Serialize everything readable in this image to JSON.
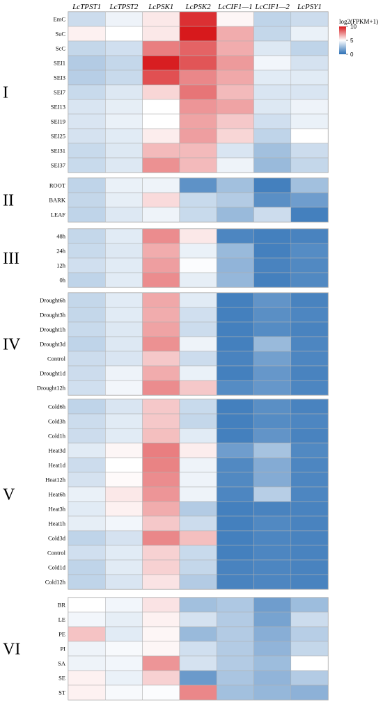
{
  "chart_data": {
    "type": "heatmap",
    "columns": [
      "LcTPST1",
      "LcTPST2",
      "LcPSK1",
      "LcPSK2",
      "LcCIF1—1",
      "LcCIF1—2",
      "LcPSY1"
    ],
    "colorbar": {
      "title": "log2(FPKM+1)",
      "min": 0,
      "max": 10,
      "ticks": [
        10,
        5,
        0
      ],
      "low_color": "#2b6fb5",
      "mid_color": "#ffffff",
      "high_color": "#d7191c"
    },
    "groups": [
      {
        "label": "I",
        "rows": [
          "EmC",
          "SuC",
          "ScC",
          "SEI1",
          "SEI3",
          "SEI7",
          "SEI13",
          "SEI19",
          "SEI25",
          "SEI31",
          "SEI37"
        ],
        "values": [
          [
            3.8,
            4.6,
            5.5,
            9.5,
            5.2,
            3.5,
            3.8
          ],
          [
            5.3,
            5.0,
            5.5,
            10.0,
            6.8,
            3.6,
            4.5
          ],
          [
            3.6,
            3.9,
            7.8,
            8.4,
            6.8,
            4.2,
            3.5
          ],
          [
            3.2,
            3.6,
            9.9,
            8.7,
            7.2,
            4.7,
            4.0
          ],
          [
            3.3,
            3.7,
            8.8,
            7.6,
            6.9,
            4.3,
            4.3
          ],
          [
            3.7,
            4.2,
            5.9,
            8.0,
            6.5,
            4.1,
            4.1
          ],
          [
            4.1,
            4.4,
            5.0,
            7.3,
            7.0,
            4.2,
            4.6
          ],
          [
            4.1,
            4.5,
            5.0,
            7.0,
            6.2,
            3.9,
            4.5
          ],
          [
            4.0,
            4.3,
            5.4,
            7.1,
            5.9,
            3.5,
            5.0
          ],
          [
            3.7,
            4.2,
            6.5,
            6.5,
            4.1,
            2.8,
            3.8
          ],
          [
            3.7,
            4.2,
            7.4,
            6.5,
            4.6,
            2.6,
            3.6
          ]
        ]
      },
      {
        "label": "II",
        "rows": [
          "ROOT",
          "BARK",
          "LEAF"
        ],
        "values": [
          [
            3.5,
            4.5,
            4.6,
            1.2,
            2.8,
            0.6,
            2.8
          ],
          [
            3.6,
            4.4,
            5.8,
            3.7,
            3.2,
            1.1,
            1.6
          ],
          [
            3.5,
            4.2,
            4.6,
            3.7,
            2.6,
            3.8,
            0.6
          ]
        ]
      },
      {
        "label": "III",
        "rows": [
          "48h",
          "24h",
          "12h",
          "0h"
        ],
        "values": [
          [
            3.6,
            4.3,
            7.5,
            5.5,
            0.8,
            0.6,
            0.7
          ],
          [
            3.7,
            4.2,
            6.8,
            4.5,
            2.6,
            0.6,
            1.0
          ],
          [
            3.9,
            4.3,
            7.1,
            4.9,
            2.4,
            0.7,
            0.9
          ],
          [
            3.5,
            4.3,
            7.5,
            4.4,
            2.5,
            0.6,
            0.9
          ]
        ]
      },
      {
        "label": "IV",
        "rows": [
          "Drought6h",
          "Drought3h",
          "Drought1h",
          "Drought3d",
          "Control",
          "Drought1d",
          "Drought12h"
        ],
        "values": [
          [
            3.6,
            4.3,
            6.9,
            4.3,
            0.6,
            1.3,
            0.7
          ],
          [
            3.6,
            4.3,
            6.8,
            3.9,
            0.6,
            1.1,
            0.8
          ],
          [
            3.7,
            4.2,
            7.0,
            3.8,
            0.6,
            1.0,
            0.7
          ],
          [
            3.5,
            4.2,
            7.4,
            4.6,
            0.6,
            2.6,
            0.8
          ],
          [
            3.8,
            4.1,
            6.2,
            3.8,
            0.7,
            1.7,
            0.8
          ],
          [
            3.8,
            4.6,
            6.8,
            4.5,
            0.6,
            1.4,
            0.7
          ],
          [
            3.9,
            4.7,
            7.5,
            6.2,
            1.0,
            1.4,
            0.8
          ]
        ]
      },
      {
        "label": "V",
        "rows": [
          "Cold6h",
          "Cold3h",
          "Cold1h",
          "Heat3d",
          "Heat1d",
          "Heat12h",
          "Heat6h",
          "Heat3h",
          "Heat1h",
          "Cold3d",
          "Control",
          "Cold1d",
          "Cold12h"
        ],
        "values": [
          [
            3.5,
            4.1,
            6.2,
            3.7,
            0.6,
            1.1,
            0.7
          ],
          [
            3.8,
            4.3,
            6.2,
            3.6,
            0.6,
            1.0,
            0.8
          ],
          [
            3.8,
            4.3,
            6.4,
            4.3,
            0.6,
            1.3,
            0.7
          ],
          [
            4.3,
            5.2,
            7.8,
            5.4,
            1.6,
            2.9,
            0.9
          ],
          [
            3.8,
            5.0,
            7.7,
            4.6,
            0.9,
            2.1,
            0.8
          ],
          [
            4.0,
            5.1,
            7.5,
            4.6,
            0.9,
            2.1,
            0.8
          ],
          [
            4.5,
            5.5,
            7.3,
            4.6,
            0.8,
            3.3,
            0.8
          ],
          [
            4.3,
            5.3,
            6.8,
            3.2,
            0.6,
            0.7,
            0.7
          ],
          [
            4.4,
            4.7,
            6.2,
            3.8,
            0.6,
            0.9,
            0.7
          ],
          [
            3.5,
            4.0,
            7.6,
            6.4,
            0.6,
            0.8,
            0.7
          ],
          [
            3.9,
            4.3,
            6.0,
            3.7,
            0.6,
            0.8,
            0.7
          ],
          [
            3.5,
            4.3,
            6.0,
            3.6,
            0.7,
            0.8,
            0.7
          ],
          [
            3.5,
            4.1,
            5.6,
            3.2,
            0.7,
            0.8,
            0.7
          ]
        ]
      },
      {
        "label": "VI",
        "rows": [
          "BR",
          "LE",
          "PE",
          "PI",
          "SA",
          "SE",
          "ST"
        ],
        "values": [
          [
            5.0,
            4.7,
            5.6,
            2.8,
            3.1,
            1.6,
            2.7
          ],
          [
            4.7,
            4.4,
            5.3,
            4.0,
            3.2,
            1.8,
            3.8
          ],
          [
            6.3,
            4.3,
            5.2,
            2.6,
            3.2,
            2.2,
            3.3
          ],
          [
            4.6,
            4.8,
            5.2,
            3.9,
            3.2,
            2.4,
            3.6
          ],
          [
            4.6,
            4.7,
            7.3,
            4.0,
            3.2,
            2.7,
            5.0
          ],
          [
            5.3,
            4.5,
            6.0,
            1.5,
            3.0,
            2.4,
            3.2
          ],
          [
            5.3,
            4.8,
            4.9,
            7.6,
            2.8,
            2.5,
            2.3
          ]
        ]
      }
    ]
  }
}
